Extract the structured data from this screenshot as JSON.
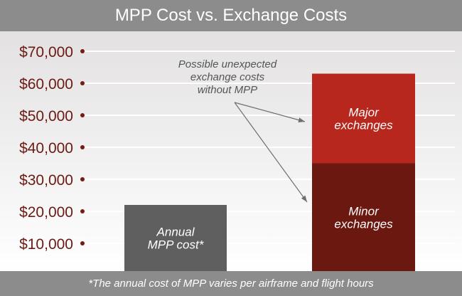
{
  "title": "MPP Cost vs. Exchange Costs",
  "footnote": "*The annual cost of MPP varies per airframe and flight hours",
  "colors": {
    "header_bg": "#8c8c8c",
    "mpp_bar": "#5f5f5f",
    "minor_exchanges": "#6b1811",
    "major_exchanges": "#b8271e",
    "tick_text": "#6b1a13",
    "bullet": "#7a1a12"
  },
  "chart_data": {
    "type": "bar",
    "stacked": true,
    "ylim": [
      0,
      73000
    ],
    "yticks": [
      10000,
      20000,
      30000,
      40000,
      50000,
      60000,
      70000
    ],
    "ytick_labels": [
      "$10,000",
      "$20,000",
      "$30,000",
      "$40,000",
      "$50,000",
      "$60,000",
      "$70,000"
    ],
    "grid": true,
    "bars": [
      {
        "segments": [
          {
            "label_lines": [
              "Annual",
              "MPP cost*"
            ],
            "value": 22000,
            "color": "#5f5f5f"
          }
        ]
      },
      {
        "segments": [
          {
            "label_lines": [
              "Minor",
              "exchanges"
            ],
            "value": 35000,
            "color": "#6b1811"
          },
          {
            "label_lines": [
              "Major",
              "exchanges"
            ],
            "value": 28000,
            "color": "#b8271e"
          }
        ]
      }
    ],
    "annotation": {
      "lines": [
        "Possible unexpected",
        "exchange costs",
        "without MPP"
      ]
    }
  }
}
